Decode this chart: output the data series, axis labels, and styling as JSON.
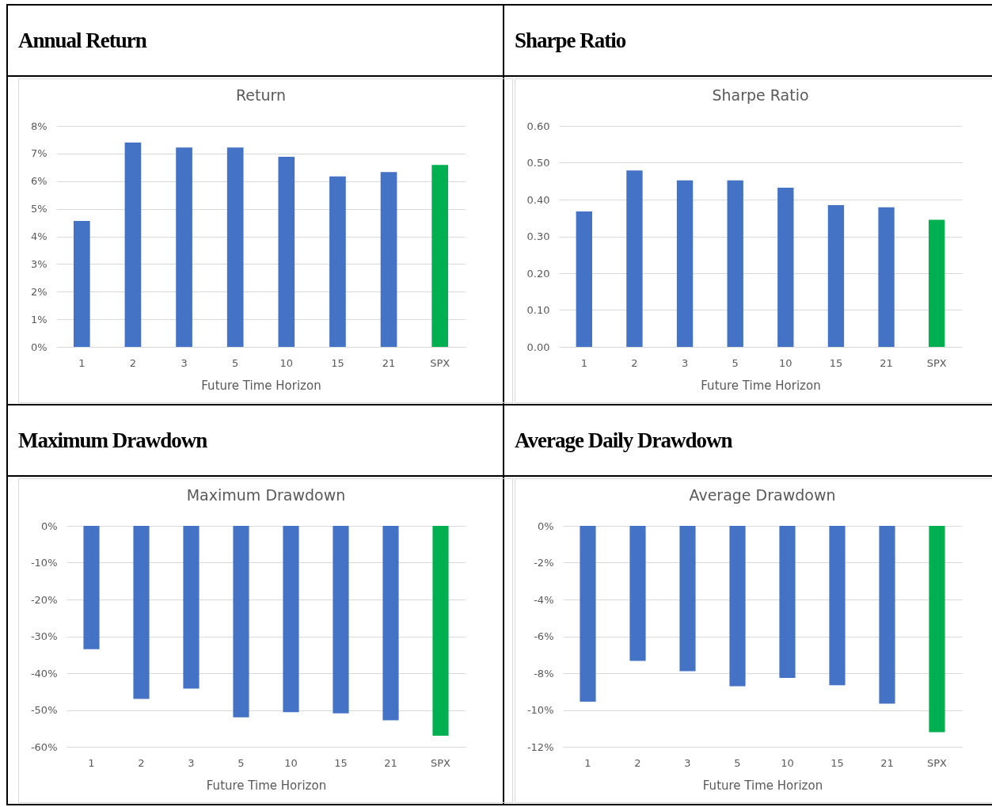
{
  "chart_data": [
    {
      "type": "bar",
      "title": "Annual Return",
      "subtitle": "Return",
      "xlabel": "Future Time Horizon",
      "categories": [
        "1",
        "2",
        "3",
        "5",
        "10",
        "15",
        "21",
        "SPX"
      ],
      "values": [
        4.56,
        7.4,
        7.22,
        7.22,
        6.88,
        6.17,
        6.33,
        6.59
      ],
      "colors": [
        "#4472c4",
        "#4472c4",
        "#4472c4",
        "#4472c4",
        "#4472c4",
        "#4472c4",
        "#4472c4",
        "#00b050"
      ],
      "ylim": [
        0,
        8
      ],
      "yticks": [
        {
          "value": 0,
          "label": "0%"
        },
        {
          "value": 1,
          "label": "1%"
        },
        {
          "value": 2,
          "label": "2%"
        },
        {
          "value": 3,
          "label": "3%"
        },
        {
          "value": 4,
          "label": "4%"
        },
        {
          "value": 5,
          "label": "5%"
        },
        {
          "value": 6,
          "label": "6%"
        },
        {
          "value": 7,
          "label": "7%"
        },
        {
          "value": 8,
          "label": "8%"
        }
      ],
      "grid": "y",
      "legend": false
    },
    {
      "type": "bar",
      "title": "Sharpe Ratio",
      "subtitle": "Sharpe Ratio",
      "xlabel": "Future Time Horizon",
      "categories": [
        "1",
        "2",
        "3",
        "5",
        "10",
        "15",
        "21",
        "SPX"
      ],
      "values": [
        0.368,
        0.479,
        0.452,
        0.452,
        0.432,
        0.385,
        0.379,
        0.345
      ],
      "colors": [
        "#4472c4",
        "#4472c4",
        "#4472c4",
        "#4472c4",
        "#4472c4",
        "#4472c4",
        "#4472c4",
        "#00b050"
      ],
      "ylim": [
        0,
        0.6
      ],
      "yticks": [
        {
          "value": 0,
          "label": "0.00"
        },
        {
          "value": 0.1,
          "label": "0.10"
        },
        {
          "value": 0.2,
          "label": "0.20"
        },
        {
          "value": 0.3,
          "label": "0.30"
        },
        {
          "value": 0.4,
          "label": "0.40"
        },
        {
          "value": 0.5,
          "label": "0.50"
        },
        {
          "value": 0.6,
          "label": "0.60"
        }
      ],
      "grid": "y",
      "legend": false
    },
    {
      "type": "bar",
      "title": "Maximum Drawdown",
      "subtitle": "Maximum Drawdown",
      "xlabel": "Future Time Horizon",
      "categories": [
        "1",
        "2",
        "3",
        "5",
        "10",
        "15",
        "21",
        "SPX"
      ],
      "values": [
        -33.5,
        -47.0,
        -44.2,
        -52.0,
        -50.6,
        -50.9,
        -52.8,
        -57.0
      ],
      "colors": [
        "#4472c4",
        "#4472c4",
        "#4472c4",
        "#4472c4",
        "#4472c4",
        "#4472c4",
        "#4472c4",
        "#00b050"
      ],
      "ylim": [
        -60,
        0
      ],
      "yticks": [
        {
          "value": -60,
          "label": "-60%"
        },
        {
          "value": -50,
          "label": "-50%"
        },
        {
          "value": -40,
          "label": "-40%"
        },
        {
          "value": -30,
          "label": "-30%"
        },
        {
          "value": -20,
          "label": "-20%"
        },
        {
          "value": -10,
          "label": "-10%"
        },
        {
          "value": 0,
          "label": "0%"
        }
      ],
      "grid": "y",
      "legend": false
    },
    {
      "type": "bar",
      "title": "Average Daily Drawdown",
      "subtitle": "Average Drawdown",
      "xlabel": "Future Time Horizon",
      "categories": [
        "1",
        "2",
        "3",
        "5",
        "10",
        "15",
        "21",
        "SPX"
      ],
      "values": [
        -9.55,
        -7.33,
        -7.89,
        -8.71,
        -8.26,
        -8.66,
        -9.66,
        -11.2
      ],
      "colors": [
        "#4472c4",
        "#4472c4",
        "#4472c4",
        "#4472c4",
        "#4472c4",
        "#4472c4",
        "#4472c4",
        "#00b050"
      ],
      "ylim": [
        -12,
        0
      ],
      "yticks": [
        {
          "value": -12,
          "label": "-12%"
        },
        {
          "value": -10,
          "label": "-10%"
        },
        {
          "value": -8,
          "label": "-8%"
        },
        {
          "value": -6,
          "label": "-6%"
        },
        {
          "value": -4,
          "label": "-4%"
        },
        {
          "value": -2,
          "label": "-2%"
        },
        {
          "value": 0,
          "label": "0%"
        }
      ],
      "grid": "y",
      "legend": false
    }
  ]
}
